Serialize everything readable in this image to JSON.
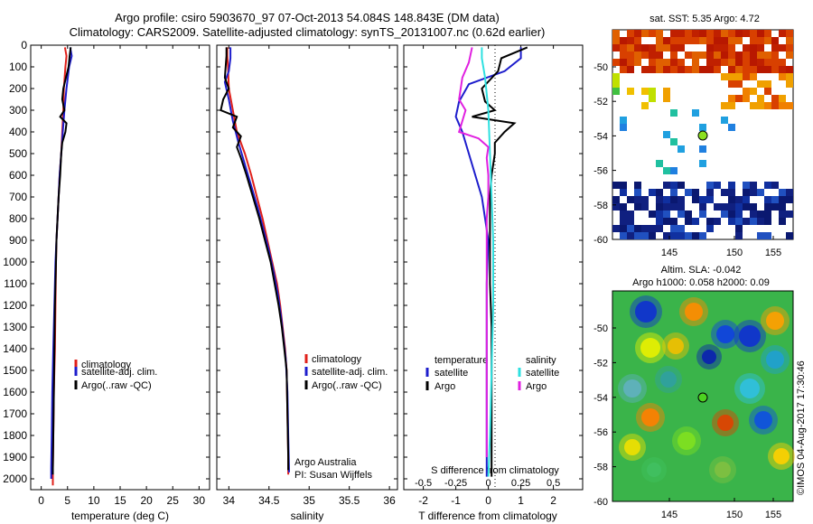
{
  "title_line1": "Argo profile: csiro 5903670_97 07-Oct-2013 54.084S 148.843E (DM data)",
  "title_line2": "Climatology: CARS2009. Satellite-adjusted climatology: synTS_20131007.nc (0.62d earlier)",
  "colors": {
    "climatology": "#e0201a",
    "satellite": "#1d1dcc",
    "argo": "#000000",
    "satellite_s": "#2ee0e0",
    "argo_s": "#e020e0"
  },
  "chart_data": [
    {
      "type": "line",
      "id": "temperature",
      "xlabel": "temperature (deg C)",
      "xlim": [
        -2,
        32
      ],
      "ylim": [
        2050,
        0
      ],
      "xticks": [
        0,
        5,
        10,
        15,
        20,
        25,
        30
      ],
      "yticks": [
        0,
        100,
        200,
        300,
        400,
        500,
        600,
        700,
        800,
        900,
        1000,
        1100,
        1200,
        1300,
        1400,
        1500,
        1600,
        1700,
        1800,
        1900,
        2000
      ],
      "legend": [
        "climatology",
        "satellite-adj. clim.",
        "Argo(..raw -QC)"
      ],
      "series": [
        {
          "name": "climatology",
          "color": "#e0201a",
          "points": [
            [
              4.5,
              10
            ],
            [
              4.8,
              50
            ],
            [
              4.6,
              100
            ],
            [
              4.3,
              200
            ],
            [
              4.2,
              300
            ],
            [
              4.0,
              400
            ],
            [
              3.8,
              500
            ],
            [
              3.5,
              600
            ],
            [
              3.3,
              700
            ],
            [
              3.1,
              800
            ],
            [
              2.9,
              900
            ],
            [
              2.8,
              1000
            ],
            [
              2.7,
              1200
            ],
            [
              2.6,
              1400
            ],
            [
              2.4,
              1600
            ],
            [
              2.3,
              1800
            ],
            [
              2.2,
              1950
            ],
            [
              2.2,
              2030
            ]
          ]
        },
        {
          "name": "satellite-adj. clim.",
          "color": "#1d1dcc",
          "points": [
            [
              5.5,
              10
            ],
            [
              5.8,
              50
            ],
            [
              5.3,
              100
            ],
            [
              4.8,
              200
            ],
            [
              4.4,
              300
            ],
            [
              4.1,
              400
            ],
            [
              3.8,
              500
            ],
            [
              3.5,
              600
            ],
            [
              3.3,
              700
            ],
            [
              3.1,
              800
            ],
            [
              2.9,
              900
            ],
            [
              2.7,
              1000
            ],
            [
              2.5,
              1200
            ],
            [
              2.3,
              1400
            ],
            [
              2.1,
              1600
            ],
            [
              2.0,
              1800
            ],
            [
              1.9,
              1950
            ],
            [
              1.9,
              2000
            ]
          ]
        },
        {
          "name": "Argo(..raw -QC)",
          "color": "#000000",
          "points": [
            [
              5.6,
              10
            ],
            [
              5.4,
              50
            ],
            [
              5.2,
              100
            ],
            [
              4.7,
              150
            ],
            [
              4.2,
              200
            ],
            [
              4.0,
              250
            ],
            [
              4.4,
              300
            ],
            [
              3.6,
              330
            ],
            [
              4.8,
              360
            ],
            [
              4.6,
              400
            ],
            [
              4.0,
              450
            ],
            [
              3.8,
              500
            ],
            [
              3.6,
              600
            ],
            [
              3.3,
              700
            ],
            [
              3.1,
              800
            ],
            [
              2.9,
              900
            ],
            [
              2.8,
              1000
            ],
            [
              2.6,
              1200
            ],
            [
              2.5,
              1400
            ],
            [
              2.4,
              1600
            ],
            [
              2.3,
              1800
            ],
            [
              2.2,
              1950
            ],
            [
              2.2,
              1980
            ]
          ]
        }
      ]
    },
    {
      "type": "line",
      "id": "salinity",
      "xlabel": "salinity",
      "xlim": [
        33.85,
        36.1
      ],
      "ylim": [
        2050,
        0
      ],
      "xticks": [
        34,
        34.5,
        35,
        35.5,
        36
      ],
      "legend": [
        "climatology",
        "satellite-adj. clim.",
        "Argo(..raw -QC)"
      ],
      "annotation": [
        "Argo Australia",
        "PI: Susan Wijffels"
      ],
      "series": [
        {
          "name": "climatology",
          "color": "#e0201a",
          "points": [
            [
              33.98,
              10
            ],
            [
              33.98,
              50
            ],
            [
              33.99,
              100
            ],
            [
              34.0,
              200
            ],
            [
              34.05,
              300
            ],
            [
              34.1,
              400
            ],
            [
              34.2,
              500
            ],
            [
              34.28,
              600
            ],
            [
              34.35,
              700
            ],
            [
              34.42,
              800
            ],
            [
              34.48,
              900
            ],
            [
              34.54,
              1000
            ],
            [
              34.6,
              1100
            ],
            [
              34.64,
              1200
            ],
            [
              34.67,
              1300
            ],
            [
              34.7,
              1400
            ],
            [
              34.72,
              1500
            ],
            [
              34.73,
              1700
            ],
            [
              34.74,
              1900
            ],
            [
              34.74,
              1980
            ]
          ]
        },
        {
          "name": "satellite-adj. clim.",
          "color": "#1d1dcc",
          "points": [
            [
              34.02,
              10
            ],
            [
              34.02,
              60
            ],
            [
              34.0,
              120
            ],
            [
              33.95,
              170
            ],
            [
              34.0,
              250
            ],
            [
              34.05,
              350
            ],
            [
              34.12,
              450
            ],
            [
              34.2,
              550
            ],
            [
              34.28,
              650
            ],
            [
              34.36,
              750
            ],
            [
              34.43,
              850
            ],
            [
              34.5,
              950
            ],
            [
              34.56,
              1050
            ],
            [
              34.61,
              1150
            ],
            [
              34.65,
              1250
            ],
            [
              34.68,
              1350
            ],
            [
              34.71,
              1450
            ],
            [
              34.73,
              1600
            ],
            [
              34.74,
              1800
            ],
            [
              34.75,
              1970
            ]
          ]
        },
        {
          "name": "Argo(..raw -QC)",
          "color": "#000000",
          "points": [
            [
              33.97,
              10
            ],
            [
              33.97,
              50
            ],
            [
              33.96,
              100
            ],
            [
              33.95,
              150
            ],
            [
              34.0,
              200
            ],
            [
              33.93,
              250
            ],
            [
              33.9,
              300
            ],
            [
              34.1,
              330
            ],
            [
              34.05,
              380
            ],
            [
              34.15,
              420
            ],
            [
              34.1,
              470
            ],
            [
              34.15,
              520
            ],
            [
              34.22,
              600
            ],
            [
              34.3,
              700
            ],
            [
              34.38,
              800
            ],
            [
              34.45,
              900
            ],
            [
              34.52,
              1000
            ],
            [
              34.57,
              1100
            ],
            [
              34.62,
              1200
            ],
            [
              34.66,
              1300
            ],
            [
              34.69,
              1400
            ],
            [
              34.72,
              1500
            ],
            [
              34.73,
              1700
            ],
            [
              34.74,
              1900
            ],
            [
              34.74,
              1960
            ]
          ]
        }
      ]
    },
    {
      "type": "line",
      "id": "difference",
      "xlabel": "T difference from climatology",
      "xlabel2": "S difference from climatology",
      "xlim": [
        -2.6,
        2.9
      ],
      "ylim": [
        2050,
        0
      ],
      "xticks": [
        -2,
        -1,
        0,
        1,
        2
      ],
      "xticks2": [
        "-0.5",
        "-0.25",
        "0",
        "0.25",
        "0.5"
      ],
      "legend_t": {
        "title": "temperature",
        "items": [
          "satellite",
          "Argo"
        ]
      },
      "legend_s": {
        "title": "salinity",
        "items": [
          "satellite",
          "Argo"
        ]
      },
      "series": [
        {
          "name": "satellite",
          "color": "#1d1dcc",
          "points": [
            [
              1.0,
              10
            ],
            [
              1.0,
              60
            ],
            [
              0.5,
              120
            ],
            [
              -0.6,
              180
            ],
            [
              -0.9,
              260
            ],
            [
              -1.0,
              330
            ],
            [
              -0.8,
              400
            ],
            [
              -0.6,
              500
            ],
            [
              -0.4,
              600
            ],
            [
              -0.2,
              700
            ],
            [
              -0.1,
              800
            ],
            [
              0.0,
              900
            ],
            [
              -0.05,
              1100
            ],
            [
              -0.05,
              1400
            ],
            [
              -0.05,
              1700
            ],
            [
              -0.05,
              1990
            ]
          ]
        },
        {
          "name": "Argo",
          "color": "#000000",
          "points": [
            [
              1.2,
              10
            ],
            [
              0.4,
              60
            ],
            [
              0.3,
              120
            ],
            [
              -0.2,
              200
            ],
            [
              -0.1,
              260
            ],
            [
              0.2,
              300
            ],
            [
              -0.5,
              330
            ],
            [
              0.8,
              360
            ],
            [
              0.5,
              400
            ],
            [
              0.2,
              450
            ],
            [
              0.2,
              500
            ],
            [
              0.1,
              600
            ],
            [
              0.05,
              700
            ],
            [
              0.05,
              900
            ],
            [
              0.05,
              1100
            ],
            [
              0.1,
              1300
            ],
            [
              0.1,
              1500
            ],
            [
              0.1,
              1700
            ],
            [
              0.1,
              1990
            ]
          ]
        },
        {
          "name": "satellite",
          "color": "#2ee0e0",
          "points": [
            [
              -0.2,
              10
            ],
            [
              -0.2,
              60
            ],
            [
              -0.1,
              150
            ],
            [
              0.0,
              300
            ],
            [
              0.05,
              500
            ],
            [
              0.1,
              700
            ],
            [
              0.15,
              900
            ],
            [
              0.15,
              1200
            ],
            [
              0.1,
              1500
            ],
            [
              0.05,
              1800
            ],
            [
              0.0,
              1990
            ]
          ]
        },
        {
          "name": "Argo",
          "color": "#e020e0",
          "points": [
            [
              -0.5,
              10
            ],
            [
              -0.6,
              80
            ],
            [
              -0.8,
              150
            ],
            [
              -0.9,
              250
            ],
            [
              -0.7,
              300
            ],
            [
              -0.8,
              350
            ],
            [
              -0.9,
              400
            ],
            [
              -0.3,
              430
            ],
            [
              0.0,
              470
            ],
            [
              -0.05,
              520
            ],
            [
              0.0,
              600
            ],
            [
              0.0,
              700
            ],
            [
              -0.05,
              800
            ],
            [
              -0.05,
              1000
            ],
            [
              -0.05,
              1200
            ],
            [
              -0.05,
              1500
            ],
            [
              -0.05,
              1700
            ],
            [
              -0.05,
              1900
            ]
          ]
        }
      ]
    }
  ],
  "maps": {
    "sst": {
      "title": "sat. SST: 5.35 Argo: 4.72",
      "yticks": [
        "-50",
        "-52",
        "-54",
        "-56",
        "-58",
        "-60"
      ],
      "xticks": [
        "145",
        "150",
        "155"
      ]
    },
    "sla": {
      "title1": "Altim. SLA: -0.042",
      "title2": "Argo h1000: 0.058 h2000: 0.09",
      "yticks": [
        "-50",
        "-52",
        "-54",
        "-56",
        "-58",
        "-60"
      ],
      "xticks": [
        "145",
        "150",
        "155"
      ],
      "credit": "©IMOS 04-Aug-2017 17:30:46"
    }
  }
}
